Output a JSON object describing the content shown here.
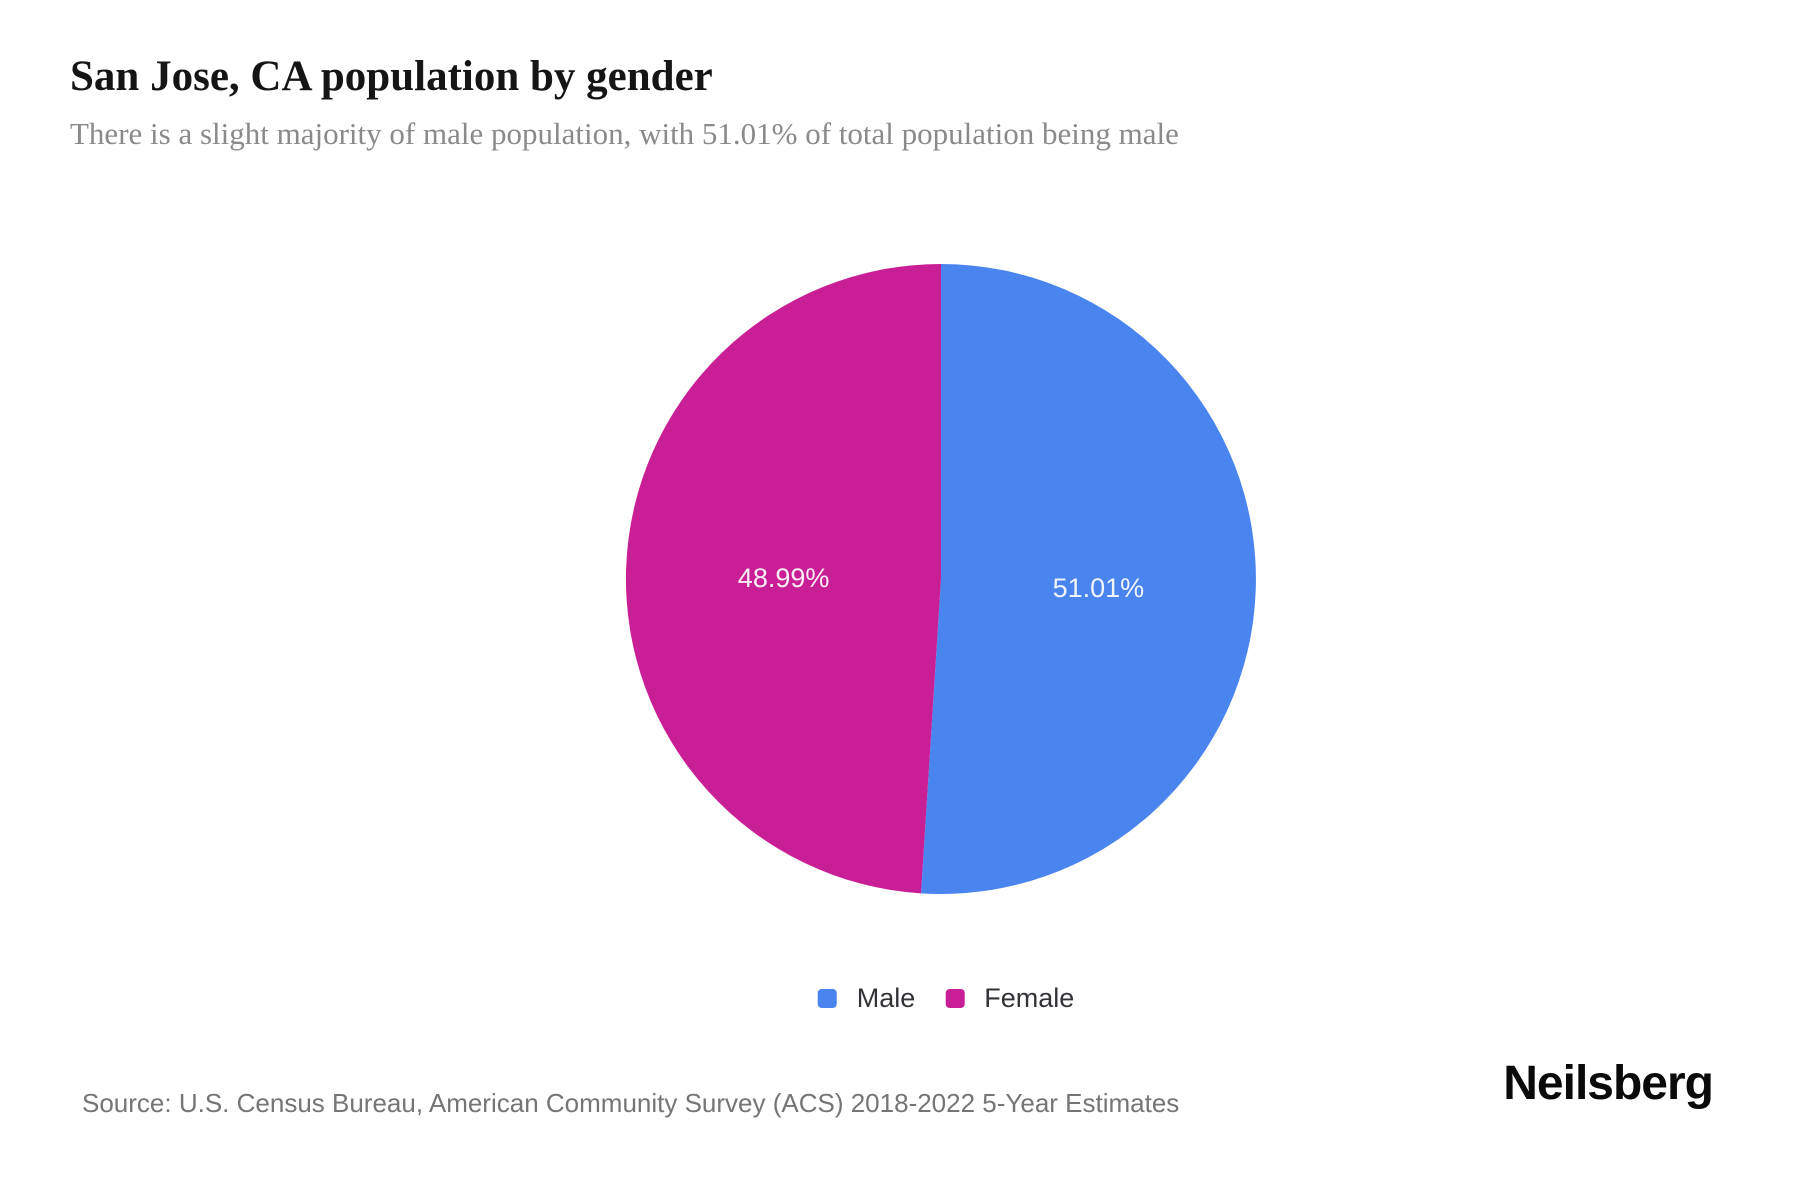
{
  "header": {
    "title": "San Jose, CA population by gender",
    "subtitle": "There is a slight majority of male population, with 51.01% of total population being male"
  },
  "chart_data": {
    "type": "pie",
    "title": "San Jose, CA population by gender",
    "slices": [
      {
        "name": "Male",
        "value": 51.01,
        "label": "51.01%",
        "color": "#4a84ef"
      },
      {
        "name": "Female",
        "value": 48.99,
        "label": "48.99%",
        "color": "#c91f96"
      }
    ],
    "start_angle_deg": 0,
    "direction": "clockwise",
    "legend_position": "bottom",
    "data_label_color": "#ffffff"
  },
  "footer": {
    "source": "Source: U.S. Census Bureau, American Community Survey (ACS) 2018-2022 5-Year Estimates",
    "brand": "Neilsberg"
  }
}
